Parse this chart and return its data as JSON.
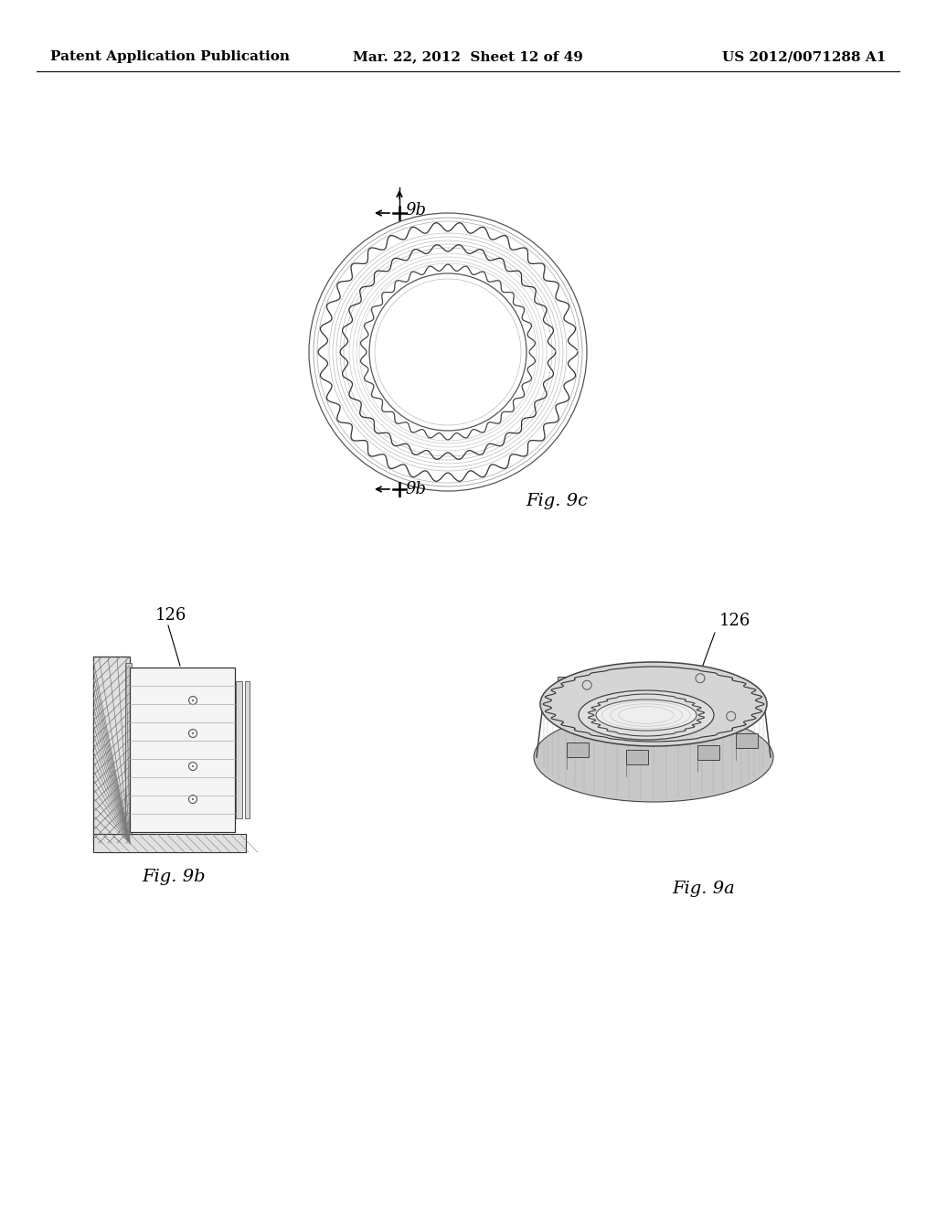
{
  "page_title_left": "Patent Application Publication",
  "page_title_mid": "Mar. 22, 2012  Sheet 12 of 49",
  "page_title_right": "US 2012/0071288 A1",
  "background_color": "#ffffff",
  "text_color": "#000000",
  "fig9c_label": "Fig. 9c",
  "fig9b_label": "Fig. 9b",
  "fig9a_label": "Fig. 9a",
  "label_126": "126",
  "label_9b": "9b",
  "header_fontsize": 11,
  "label_fontsize": 13,
  "figlabel_fontsize": 14
}
